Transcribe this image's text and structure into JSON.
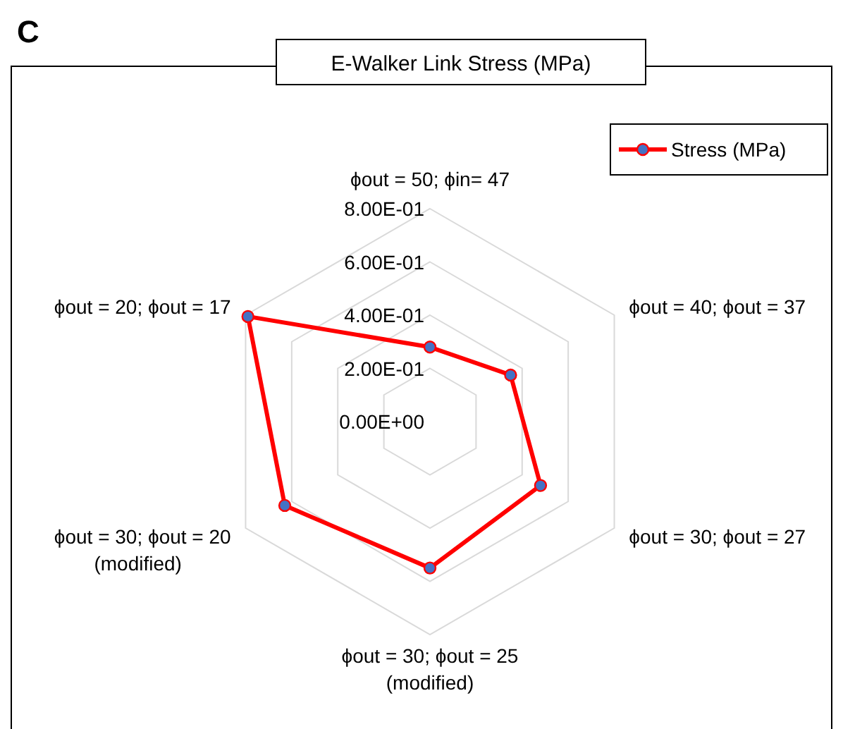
{
  "chart_data": {
    "type": "radar",
    "title": "E-Walker Link Stress (MPa)",
    "annotations": [
      "C"
    ],
    "categories": [
      "ϕout = 50; ϕin= 47",
      "ϕout = 40; ϕout = 37",
      "ϕout = 30; ϕout = 27",
      "ϕout = 30; ϕout = 25\n(modified)",
      "ϕout = 30; ϕout = 20\n(modified)",
      "ϕout = 20; ϕout = 17"
    ],
    "series": [
      {
        "name": "Stress (MPa)",
        "color": "#ff0000",
        "values": [
          0.28,
          0.35,
          0.48,
          0.55,
          0.63,
          0.79
        ]
      }
    ],
    "ylim": [
      0,
      0.8
    ],
    "yticks": [
      {
        "value": 0,
        "label": "0.00E+00"
      },
      {
        "value": 0.2,
        "label": "2.00E-01"
      },
      {
        "value": 0.4,
        "label": "4.00E-01"
      },
      {
        "value": 0.6,
        "label": "6.00E-01"
      },
      {
        "value": 0.8,
        "label": "8.00E-01"
      }
    ],
    "grid": true,
    "legend": "top right",
    "marker": "circle",
    "line_style": "solid"
  }
}
